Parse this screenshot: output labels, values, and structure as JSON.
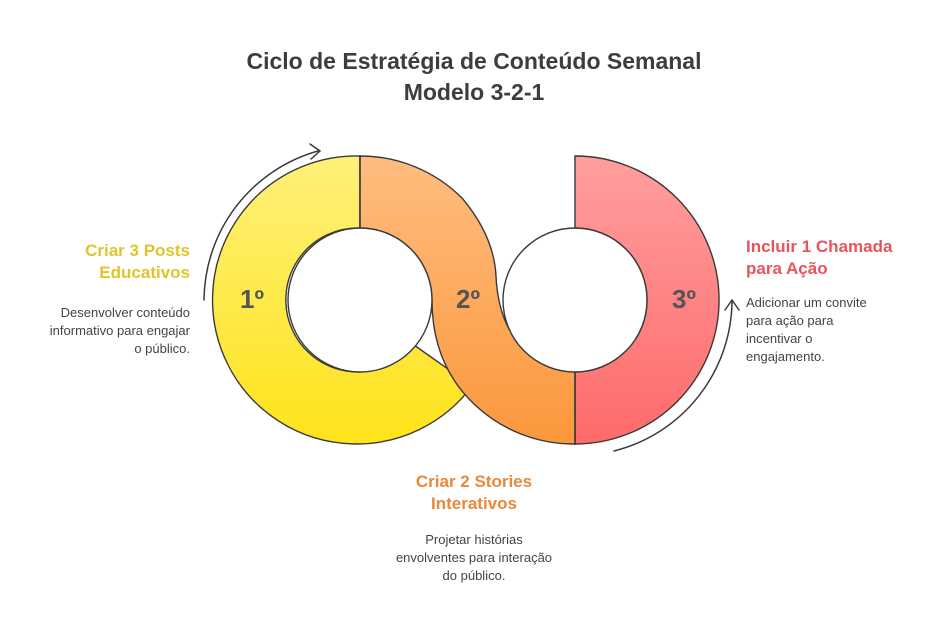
{
  "title": {
    "line1": "Ciclo de Estratégia de Conteúdo Semanal",
    "line2": "Modelo 3-2-1"
  },
  "steps": [
    {
      "number": "1º",
      "title": "Criar 3 Posts Educativos",
      "title_line1": "Criar 3 Posts",
      "title_line2": "Educativos",
      "description": "Desenvolver conteúdo informativo para engajar o público.",
      "desc_line1": "Desenvolver conteúdo",
      "desc_line2": "informativo para engajar",
      "desc_line3": "o público.",
      "color": "#e0c52a",
      "ring_color_top": "#fff07a",
      "ring_color_bottom": "#ffe31a"
    },
    {
      "number": "2º",
      "title": "Criar 2 Stories Interativos",
      "title_line1": "Criar 2 Stories",
      "title_line2": "Interativos",
      "description": "Projetar histórias envolventes para interação do público.",
      "desc_line1": "Projetar histórias",
      "desc_line2": "envolventes para interação",
      "desc_line3": "do público.",
      "color": "#e8883a",
      "ring_color_top": "#ffbd80",
      "ring_color_bottom": "#fb973b"
    },
    {
      "number": "3º",
      "title": "Incluir 1 Chamada para Ação",
      "title_line1": "Incluir 1 Chamada",
      "title_line2": "para Ação",
      "description": "Adicionar um convite para ação para incentivar o engajamento.",
      "desc_line1": "Adicionar um convite",
      "desc_line2": "para ação para",
      "desc_line3": "incentivar o",
      "desc_line4": "engajamento.",
      "color": "#e9545a",
      "ring_color_top": "#ff9d9d",
      "ring_color_bottom": "#ff6b6b"
    }
  ],
  "colors": {
    "title": "#3d3d3d",
    "outline": "#3a3a3a",
    "number": "#555555"
  }
}
